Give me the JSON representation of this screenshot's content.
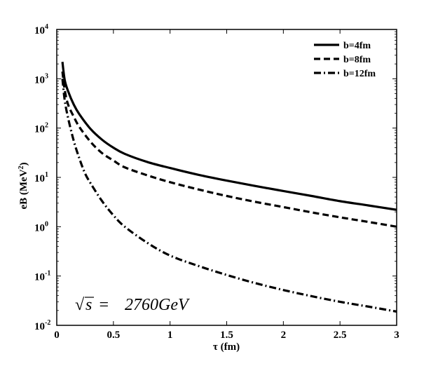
{
  "chart_data": {
    "type": "line",
    "title": "",
    "xlabel": "τ (fm)",
    "ylabel_base": "eB (MeV",
    "ylabel_sup": "2",
    "ylabel_close": ")",
    "xlim": [
      0,
      3
    ],
    "ylim_log10": [
      -2,
      4
    ],
    "yscale": "log",
    "grid": false,
    "legend_position": "top-right",
    "x_ticks": [
      0,
      0.5,
      1,
      1.5,
      2,
      2.5,
      3
    ],
    "x_tick_labels": [
      "0",
      "0.5",
      "1",
      "1.5",
      "2",
      "2.5",
      "3"
    ],
    "y_ticks_exp": [
      -2,
      -1,
      0,
      1,
      2,
      3,
      4
    ],
    "y_tick_base": "10",
    "y_tick_exponents": [
      "-2",
      "-1",
      "0",
      "1",
      "2",
      "3",
      "4"
    ],
    "series": [
      {
        "name": "b=4fm",
        "style": "solid",
        "x": [
          0.05,
          0.07,
          0.1,
          0.15,
          0.2,
          0.3,
          0.4,
          0.5,
          0.6,
          0.8,
          1.0,
          1.25,
          1.5,
          1.75,
          2.0,
          2.25,
          2.5,
          2.75,
          3.0
        ],
        "y": [
          2200,
          950,
          560,
          300,
          190,
          95,
          58,
          40,
          30,
          20.5,
          15.5,
          11.3,
          8.6,
          6.7,
          5.3,
          4.2,
          3.3,
          2.7,
          2.2
        ]
      },
      {
        "name": "b=8fm",
        "style": "dashed",
        "x": [
          0.05,
          0.07,
          0.1,
          0.15,
          0.2,
          0.3,
          0.4,
          0.5,
          0.6,
          0.8,
          1.0,
          1.25,
          1.5,
          1.75,
          2.0,
          2.25,
          2.5,
          2.75,
          3.0
        ],
        "y": [
          1400,
          600,
          300,
          170,
          105,
          52,
          31,
          22,
          16,
          11,
          8.0,
          5.7,
          4.2,
          3.2,
          2.5,
          1.95,
          1.55,
          1.25,
          1.0
        ]
      },
      {
        "name": "b=12fm",
        "style": "dash-dot",
        "x": [
          0.05,
          0.07,
          0.1,
          0.15,
          0.2,
          0.25,
          0.3,
          0.4,
          0.5,
          0.6,
          0.8,
          1.0,
          1.25,
          1.5,
          1.75,
          2.0,
          2.25,
          2.5,
          2.75,
          3.0
        ],
        "y": [
          1000,
          370,
          160,
          55,
          24,
          12,
          7.5,
          3.3,
          1.7,
          1.0,
          0.47,
          0.26,
          0.16,
          0.105,
          0.072,
          0.052,
          0.039,
          0.03,
          0.024,
          0.019
        ]
      }
    ],
    "annotation": {
      "sqrt_symbol": "√",
      "radicand": "s",
      "equals": " = ",
      "value": "2760GeV"
    }
  }
}
